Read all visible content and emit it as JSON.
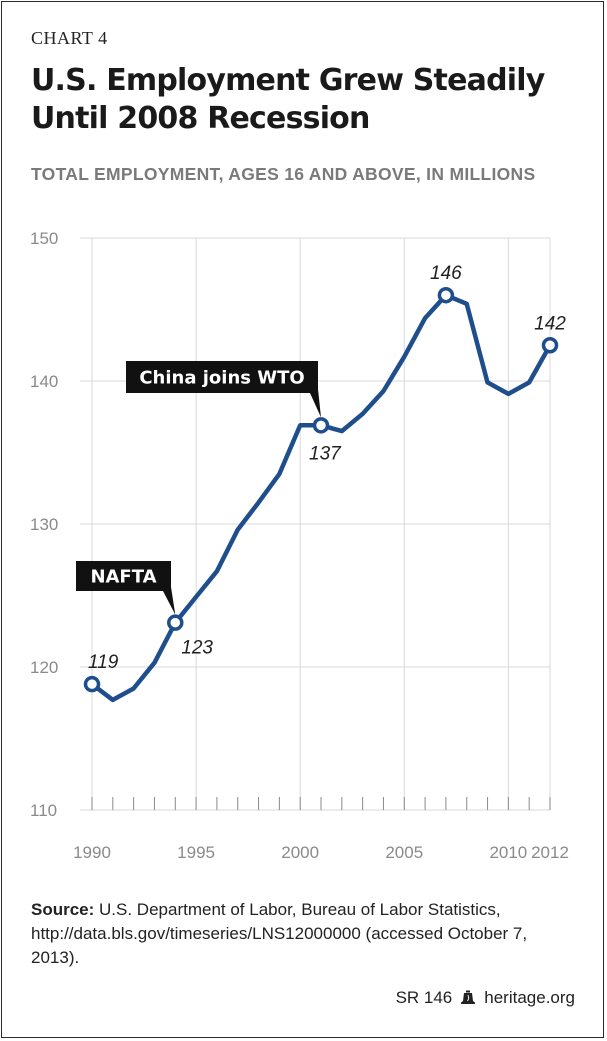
{
  "header": {
    "chart_number": "CHART 4",
    "title": "U.S. Employment Grew Steadily Until 2008 Recession",
    "subtitle": "TOTAL EMPLOYMENT, AGES 16 AND ABOVE, IN MILLIONS"
  },
  "chart_data": {
    "type": "line",
    "title": "U.S. Employment Grew Steadily Until 2008 Recession",
    "ylabel": "TOTAL EMPLOYMENT, AGES 16 AND ABOVE, IN MILLIONS",
    "xlabel": "",
    "x": [
      1990,
      1991,
      1992,
      1993,
      1994,
      1995,
      1996,
      1997,
      1998,
      1999,
      2000,
      2001,
      2002,
      2003,
      2004,
      2005,
      2006,
      2007,
      2008,
      2009,
      2010,
      2011,
      2012
    ],
    "values": [
      118.8,
      117.7,
      118.5,
      120.3,
      123.1,
      124.9,
      126.7,
      129.6,
      131.5,
      133.5,
      136.9,
      136.9,
      136.5,
      137.7,
      139.3,
      141.7,
      144.4,
      146.0,
      145.4,
      139.9,
      139.1,
      139.9,
      142.5
    ],
    "ylim": [
      110,
      150
    ],
    "xlim": [
      1990,
      2012
    ],
    "y_ticks": [
      "110",
      "120",
      "130",
      "140",
      "150"
    ],
    "x_ticks": [
      "1990",
      "1995",
      "2000",
      "2005",
      "2010",
      "2012"
    ],
    "grid": true,
    "line_color": "#1f4e8c",
    "grid_color": "#d9d9d9",
    "labeled_points": [
      {
        "x": 1990,
        "y": 118.8,
        "label": "119",
        "pos": "above"
      },
      {
        "x": 1994,
        "y": 123.1,
        "label": "123",
        "pos": "below"
      },
      {
        "x": 2001,
        "y": 136.9,
        "label": "137",
        "pos": "below"
      },
      {
        "x": 2007,
        "y": 146.0,
        "label": "146",
        "pos": "above"
      },
      {
        "x": 2012,
        "y": 142.5,
        "label": "142",
        "pos": "above"
      }
    ],
    "callouts": [
      {
        "label": "NAFTA",
        "x": 1994,
        "y": 123.1
      },
      {
        "label": "China joins WTO",
        "x": 2001,
        "y": 136.9
      }
    ]
  },
  "source": {
    "label": "Source:",
    "text": " U.S. Department of Labor, Bureau of Labor Statistics, http://data.bls.gov/timeseries/LNS12000000 (accessed October 7, 2013)."
  },
  "footer": {
    "report_id": "SR 146",
    "site": "heritage.org",
    "bell_icon": "liberty-bell-icon"
  }
}
